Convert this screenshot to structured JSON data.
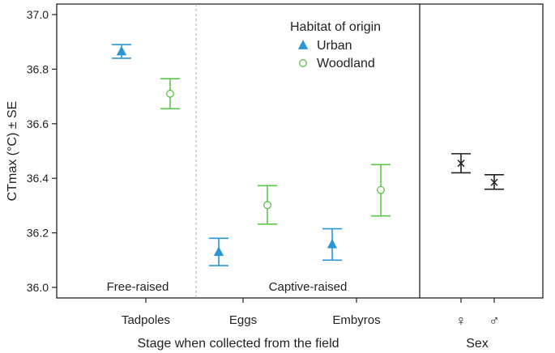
{
  "chart_data": {
    "type": "scatter",
    "ylabel": "CTmax (°C) ± SE",
    "ylim": [
      36.0,
      37.0
    ],
    "y_ticks": [
      "36.0",
      "36.2",
      "36.4",
      "36.6",
      "36.8",
      "37.0"
    ],
    "legend": {
      "title": "Habitat of origin",
      "position": "top-right of left panel",
      "entries": [
        {
          "name": "Urban",
          "marker": "triangle",
          "color": "#2b96d6"
        },
        {
          "name": "Woodland",
          "marker": "circle",
          "color": "#5ec64a"
        }
      ]
    },
    "panels": [
      {
        "xlabel": "Stage when collected from the field",
        "categories": [
          "Tadpoles",
          "Eggs",
          "Embyros"
        ],
        "groups": [
          "Free-raised",
          "Captive-raised"
        ],
        "series": [
          {
            "name": "Urban",
            "mean": [
              36.865,
              36.13,
              36.158
            ],
            "lower": [
              36.84,
              36.08,
              36.1
            ],
            "upper": [
              36.89,
              36.18,
              36.215
            ]
          },
          {
            "name": "Woodland",
            "mean": [
              36.71,
              36.302,
              36.357
            ],
            "lower": [
              36.655,
              36.232,
              36.262
            ],
            "upper": [
              36.765,
              36.373,
              36.45
            ]
          }
        ]
      },
      {
        "xlabel": "Sex",
        "categories": [
          "♀",
          "♂"
        ],
        "series": [
          {
            "marker": "cross",
            "color": "#222222",
            "mean": [
              36.455,
              36.385
            ],
            "lower": [
              36.42,
              36.36
            ],
            "upper": [
              36.49,
              36.413
            ]
          }
        ]
      }
    ]
  }
}
